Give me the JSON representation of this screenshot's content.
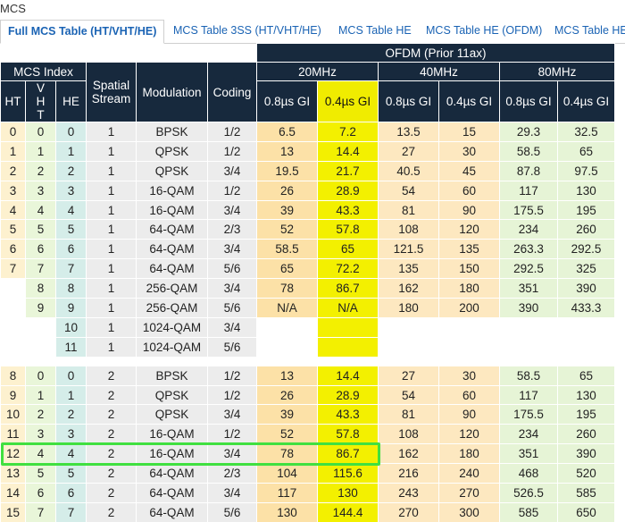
{
  "page_title": "MCS",
  "tabs": [
    {
      "label": "Full MCS Table (HT/VHT/HE)",
      "active": true
    },
    {
      "label": "MCS Table 3SS (HT/VHT/HE)",
      "active": false
    },
    {
      "label": "MCS Table HE",
      "active": false
    },
    {
      "label": "MCS Table HE (OFDM)",
      "active": false
    },
    {
      "label": "MCS Table HE",
      "active": false
    }
  ],
  "table": {
    "group_header": "OFDM (Prior 11ax)",
    "mcs_index": "MCS Index",
    "spatial_stream": "Spatial Stream",
    "modulation": "Modulation",
    "coding": "Coding",
    "ht": "HT",
    "vht": "VHT",
    "he": "HE",
    "bandwidths": [
      "20MHz",
      "40MHz",
      "80MHz"
    ],
    "gi_long": "0.8µs GI",
    "gi_short": "0.4µs GI",
    "rows": [
      [
        "0",
        "0",
        "0",
        "1",
        "BPSK",
        "1/2",
        "6.5",
        "7.2",
        "13.5",
        "15",
        "29.3",
        "32.5"
      ],
      [
        "1",
        "1",
        "1",
        "1",
        "QPSK",
        "1/2",
        "13",
        "14.4",
        "27",
        "30",
        "58.5",
        "65"
      ],
      [
        "2",
        "2",
        "2",
        "1",
        "QPSK",
        "3/4",
        "19.5",
        "21.7",
        "40.5",
        "45",
        "87.8",
        "97.5"
      ],
      [
        "3",
        "3",
        "3",
        "1",
        "16-QAM",
        "1/2",
        "26",
        "28.9",
        "54",
        "60",
        "117",
        "130"
      ],
      [
        "4",
        "4",
        "4",
        "1",
        "16-QAM",
        "3/4",
        "39",
        "43.3",
        "81",
        "90",
        "175.5",
        "195"
      ],
      [
        "5",
        "5",
        "5",
        "1",
        "64-QAM",
        "2/3",
        "52",
        "57.8",
        "108",
        "120",
        "234",
        "260"
      ],
      [
        "6",
        "6",
        "6",
        "1",
        "64-QAM",
        "3/4",
        "58.5",
        "65",
        "121.5",
        "135",
        "263.3",
        "292.5"
      ],
      [
        "7",
        "7",
        "7",
        "1",
        "64-QAM",
        "5/6",
        "65",
        "72.2",
        "135",
        "150",
        "292.5",
        "325"
      ],
      [
        "",
        "8",
        "8",
        "1",
        "256-QAM",
        "3/4",
        "78",
        "86.7",
        "162",
        "180",
        "351",
        "390"
      ],
      [
        "",
        "9",
        "9",
        "1",
        "256-QAM",
        "5/6",
        "N/A",
        "N/A",
        "180",
        "200",
        "390",
        "433.3"
      ],
      [
        "",
        "",
        "10",
        "1",
        "1024-QAM",
        "3/4",
        "",
        "",
        "",
        "",
        "",
        ""
      ],
      [
        "",
        "",
        "11",
        "1",
        "1024-QAM",
        "5/6",
        "",
        "",
        "",
        "",
        "",
        ""
      ],
      [
        "8",
        "0",
        "0",
        "2",
        "BPSK",
        "1/2",
        "13",
        "14.4",
        "27",
        "30",
        "58.5",
        "65"
      ],
      [
        "9",
        "1",
        "1",
        "2",
        "QPSK",
        "1/2",
        "26",
        "28.9",
        "54",
        "60",
        "117",
        "130"
      ],
      [
        "10",
        "2",
        "2",
        "2",
        "QPSK",
        "3/4",
        "39",
        "43.3",
        "81",
        "90",
        "175.5",
        "195"
      ],
      [
        "11",
        "3",
        "3",
        "2",
        "16-QAM",
        "1/2",
        "52",
        "57.8",
        "108",
        "120",
        "234",
        "260"
      ],
      [
        "12",
        "4",
        "4",
        "2",
        "16-QAM",
        "3/4",
        "78",
        "86.7",
        "162",
        "180",
        "351",
        "390"
      ],
      [
        "13",
        "5",
        "5",
        "2",
        "64-QAM",
        "2/3",
        "104",
        "115.6",
        "216",
        "240",
        "468",
        "520"
      ],
      [
        "14",
        "6",
        "6",
        "2",
        "64-QAM",
        "3/4",
        "117",
        "130",
        "243",
        "270",
        "526.5",
        "585"
      ],
      [
        "15",
        "7",
        "7",
        "2",
        "64-QAM",
        "5/6",
        "130",
        "144.4",
        "270",
        "300",
        "585",
        "650"
      ]
    ],
    "highlighted_row_index": 16
  }
}
